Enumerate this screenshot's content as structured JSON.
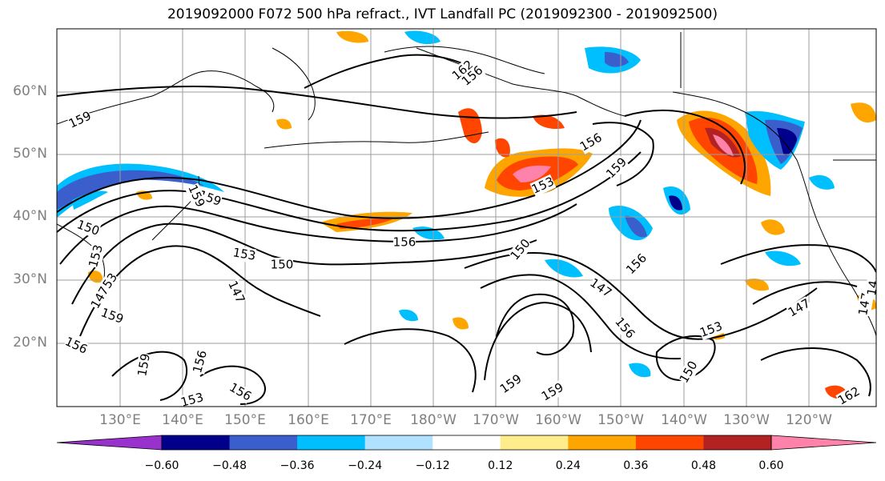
{
  "title": "2019092000 F072 500 hPa refract., IVT Landfall PC (2019092300 - 2019092500)",
  "lat_labels": [
    "60°N",
    "50°N",
    "40°N",
    "30°N",
    "20°N"
  ],
  "lon_labels": [
    "130°E",
    "140°E",
    "150°E",
    "160°E",
    "170°E",
    "180°W",
    "170°W",
    "160°W",
    "150°W",
    "140°W",
    "130°W",
    "120°W"
  ],
  "colorbar": {
    "tick_labels": [
      "−0.60",
      "−0.48",
      "−0.36",
      "−0.24",
      "−0.12",
      "0.12",
      "0.24",
      "0.36",
      "0.48",
      "0.60"
    ],
    "colors": [
      "#9932cc",
      "#00008b",
      "#3a5fcd",
      "#00bfff",
      "#b0e2ff",
      "#ffffff",
      "#ffec8b",
      "#ffa500",
      "#ff4500",
      "#b22222",
      "#ff82ab"
    ]
  },
  "contour_labels": [
    "162",
    "159",
    "159",
    "156",
    "153",
    "159",
    "150",
    "156",
    "153",
    "150",
    "147",
    "150",
    "147",
    "156",
    "153",
    "147",
    "159",
    "153",
    "159",
    "156",
    "153",
    "156",
    "159",
    "156",
    "159",
    "159",
    "150",
    "153",
    "147",
    "162",
    "147",
    "156",
    "14",
    "156"
  ]
}
